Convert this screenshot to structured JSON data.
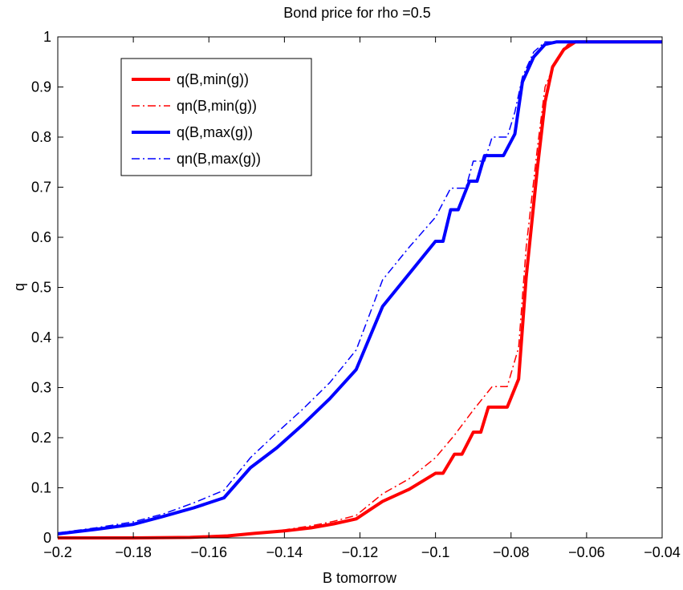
{
  "chart_data": {
    "type": "line",
    "title": "Bond price for rho =0.5",
    "xlabel": "B tomorrow",
    "ylabel": "q",
    "xlim": [
      -0.2,
      -0.04
    ],
    "ylim": [
      0,
      1
    ],
    "xticks": [
      -0.2,
      -0.18,
      -0.16,
      -0.14,
      -0.12,
      -0.1,
      -0.08,
      -0.06,
      -0.04
    ],
    "xtick_labels": [
      "−0.2",
      "−0.18",
      "−0.16",
      "−0.14",
      "−0.12",
      "−0.1",
      "−0.08",
      "−0.06",
      "−0.04"
    ],
    "yticks": [
      0,
      0.1,
      0.2,
      0.3,
      0.4,
      0.5,
      0.6,
      0.7,
      0.8,
      0.9,
      1
    ],
    "ytick_labels": [
      "0",
      "0.1",
      "0.2",
      "0.3",
      "0.4",
      "0.5",
      "0.6",
      "0.7",
      "0.8",
      "0.9",
      "1"
    ],
    "grid": false,
    "legend_position": "top-left",
    "series": [
      {
        "name": "q(B,min(g))",
        "color": "#ff0000",
        "style": "solid",
        "width": 4,
        "points": [
          [
            -0.2,
            0
          ],
          [
            -0.18,
            0
          ],
          [
            -0.165,
            0.001
          ],
          [
            -0.155,
            0.004
          ],
          [
            -0.148,
            0.009
          ],
          [
            -0.14,
            0.014
          ],
          [
            -0.133,
            0.02
          ],
          [
            -0.127,
            0.028
          ],
          [
            -0.121,
            0.038
          ],
          [
            -0.114,
            0.073
          ],
          [
            -0.107,
            0.097
          ],
          [
            -0.1,
            0.129
          ],
          [
            -0.098,
            0.129
          ],
          [
            -0.095,
            0.167
          ],
          [
            -0.093,
            0.167
          ],
          [
            -0.09,
            0.211
          ],
          [
            -0.088,
            0.211
          ],
          [
            -0.086,
            0.261
          ],
          [
            -0.081,
            0.261
          ],
          [
            -0.078,
            0.317
          ],
          [
            -0.076,
            0.52
          ],
          [
            -0.073,
            0.74
          ],
          [
            -0.071,
            0.87
          ],
          [
            -0.069,
            0.94
          ],
          [
            -0.066,
            0.975
          ],
          [
            -0.063,
            0.99
          ],
          [
            -0.06,
            0.99
          ],
          [
            -0.04,
            0.99
          ]
        ]
      },
      {
        "name": "qn(B,min(g))",
        "color": "#ff0000",
        "style": "dashdot",
        "width": 1.5,
        "points": [
          [
            -0.2,
            0
          ],
          [
            -0.18,
            0
          ],
          [
            -0.165,
            0.001
          ],
          [
            -0.155,
            0.005
          ],
          [
            -0.148,
            0.01
          ],
          [
            -0.14,
            0.016
          ],
          [
            -0.133,
            0.024
          ],
          [
            -0.127,
            0.033
          ],
          [
            -0.121,
            0.045
          ],
          [
            -0.114,
            0.088
          ],
          [
            -0.107,
            0.118
          ],
          [
            -0.1,
            0.16
          ],
          [
            -0.095,
            0.205
          ],
          [
            -0.09,
            0.255
          ],
          [
            -0.085,
            0.302
          ],
          [
            -0.081,
            0.302
          ],
          [
            -0.078,
            0.38
          ],
          [
            -0.076,
            0.58
          ],
          [
            -0.073,
            0.78
          ],
          [
            -0.071,
            0.9
          ],
          [
            -0.068,
            0.955
          ],
          [
            -0.065,
            0.985
          ],
          [
            -0.062,
            0.99
          ],
          [
            -0.04,
            0.99
          ]
        ]
      },
      {
        "name": "q(B,max(g))",
        "color": "#0000ff",
        "style": "solid",
        "width": 4,
        "points": [
          [
            -0.2,
            0.008
          ],
          [
            -0.19,
            0.017
          ],
          [
            -0.18,
            0.027
          ],
          [
            -0.172,
            0.043
          ],
          [
            -0.164,
            0.06
          ],
          [
            -0.156,
            0.08
          ],
          [
            -0.149,
            0.14
          ],
          [
            -0.142,
            0.18
          ],
          [
            -0.135,
            0.227
          ],
          [
            -0.128,
            0.278
          ],
          [
            -0.121,
            0.336
          ],
          [
            -0.114,
            0.462
          ],
          [
            -0.107,
            0.527
          ],
          [
            -0.1,
            0.592
          ],
          [
            -0.098,
            0.592
          ],
          [
            -0.096,
            0.655
          ],
          [
            -0.094,
            0.655
          ],
          [
            -0.091,
            0.712
          ],
          [
            -0.089,
            0.712
          ],
          [
            -0.087,
            0.763
          ],
          [
            -0.082,
            0.763
          ],
          [
            -0.079,
            0.806
          ],
          [
            -0.077,
            0.91
          ],
          [
            -0.074,
            0.96
          ],
          [
            -0.071,
            0.985
          ],
          [
            -0.068,
            0.99
          ],
          [
            -0.04,
            0.99
          ]
        ]
      },
      {
        "name": "qn(B,max(g))",
        "color": "#0000ff",
        "style": "dashdot",
        "width": 1.5,
        "points": [
          [
            -0.2,
            0.01
          ],
          [
            -0.19,
            0.02
          ],
          [
            -0.18,
            0.032
          ],
          [
            -0.172,
            0.048
          ],
          [
            -0.164,
            0.07
          ],
          [
            -0.156,
            0.095
          ],
          [
            -0.149,
            0.16
          ],
          [
            -0.142,
            0.21
          ],
          [
            -0.135,
            0.258
          ],
          [
            -0.128,
            0.31
          ],
          [
            -0.121,
            0.375
          ],
          [
            -0.114,
            0.515
          ],
          [
            -0.107,
            0.58
          ],
          [
            -0.1,
            0.64
          ],
          [
            -0.096,
            0.698
          ],
          [
            -0.092,
            0.698
          ],
          [
            -0.09,
            0.752
          ],
          [
            -0.087,
            0.752
          ],
          [
            -0.085,
            0.8
          ],
          [
            -0.081,
            0.8
          ],
          [
            -0.079,
            0.85
          ],
          [
            -0.077,
            0.92
          ],
          [
            -0.074,
            0.97
          ],
          [
            -0.071,
            0.99
          ],
          [
            -0.04,
            0.99
          ]
        ]
      }
    ]
  }
}
